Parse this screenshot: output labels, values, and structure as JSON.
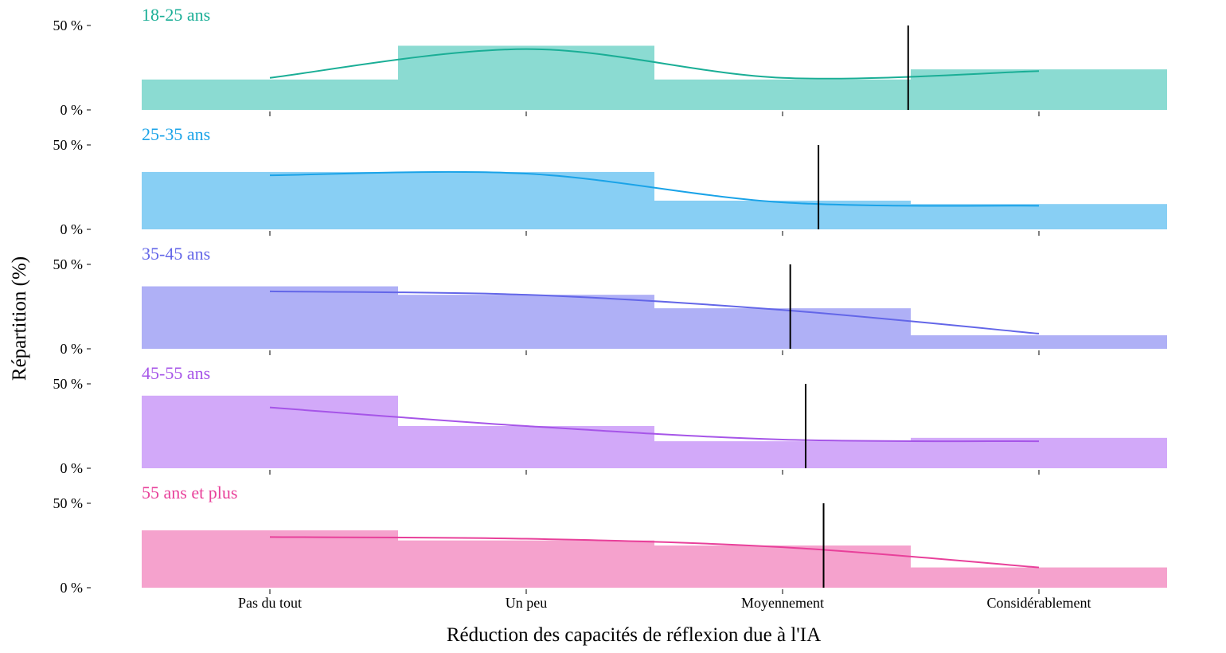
{
  "chart_data": {
    "type": "bar",
    "xlabel": "Réduction des capacités de réflexion due à l'IA",
    "ylabel": "Répartition (%)",
    "categories": [
      "Pas du tout",
      "Un peu",
      "Moyennement",
      "Considérablement"
    ],
    "y_ticks": [
      "0 %",
      "50 %"
    ],
    "ylim": [
      0,
      50
    ],
    "panels": [
      {
        "name": "18-25 ans",
        "color": "#1aae96",
        "fill": "#8bdbd2",
        "values": [
          18,
          38,
          18,
          24
        ],
        "curve": [
          19,
          36,
          19,
          23
        ],
        "mean": 2.49
      },
      {
        "name": "25-35 ans",
        "color": "#1aa3e8",
        "fill": "#88cff4",
        "values": [
          34,
          34,
          17,
          15
        ],
        "curve": [
          32,
          33,
          16,
          14
        ],
        "mean": 2.14
      },
      {
        "name": "35-45 ans",
        "color": "#6366e8",
        "fill": "#afb0f6",
        "values": [
          37,
          32,
          24,
          8
        ],
        "curve": [
          34,
          32,
          23,
          9
        ],
        "mean": 2.03
      },
      {
        "name": "45-55 ans",
        "color": "#a655e8",
        "fill": "#d2a9f9",
        "values": [
          43,
          25,
          16,
          18
        ],
        "curve": [
          36,
          25,
          17,
          16
        ],
        "mean": 2.09
      },
      {
        "name": "55 ans et plus",
        "color": "#e8409a",
        "fill": "#f5a2cd",
        "values": [
          34,
          28,
          25,
          12
        ],
        "curve": [
          30,
          29,
          24,
          12
        ],
        "mean": 2.16
      }
    ]
  }
}
